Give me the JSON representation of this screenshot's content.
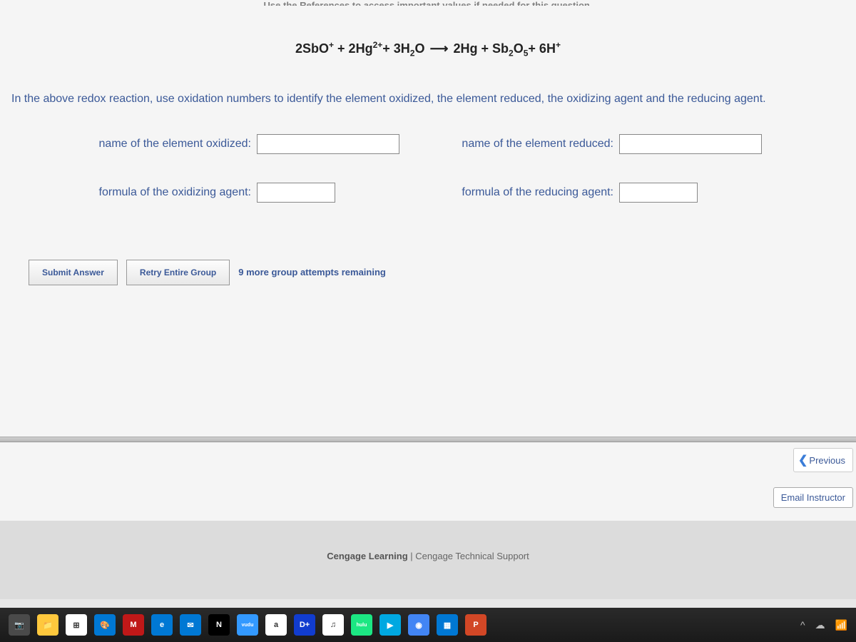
{
  "hint_text": "Use the References to access important values if needed for this question.",
  "equation_html": "2SbO<sup>+</sup> + 2Hg<sup>2+</sup>+ 3H<sub>2</sub>O<span class='arrow'>&#10230;</span>2Hg + Sb<sub>2</sub>O<sub>5</sub>+ 6H<sup>+</sup>",
  "instruction": "In the above redox reaction, use oxidation numbers to identify the element oxidized, the element reduced, the oxidizing agent and the reducing agent.",
  "fields": {
    "oxidized_label": "name of the element oxidized:",
    "reduced_label": "name of the element reduced:",
    "oxidizing_agent_label": "formula of the oxidizing agent:",
    "reducing_agent_label": "formula of the reducing agent:",
    "oxidized_value": "",
    "reduced_value": "",
    "oxidizing_agent_value": "",
    "reducing_agent_value": ""
  },
  "buttons": {
    "submit": "Submit Answer",
    "retry": "Retry Entire Group",
    "attempts": "9 more group attempts remaining",
    "previous": "Previous",
    "email": "Email Instructor"
  },
  "footer": {
    "cengage": "Cengage Learning",
    "support": "Cengage Technical Support",
    "separator": " | "
  },
  "taskbar": {
    "icons": [
      {
        "name": "camera-icon",
        "bg": "#4a4a4a",
        "label": "📷"
      },
      {
        "name": "file-explorer-icon",
        "bg": "#ffc83d",
        "label": "📁"
      },
      {
        "name": "microsoft-store-icon",
        "bg": "#ffffff",
        "label": "⊞"
      },
      {
        "name": "paint-icon",
        "bg": "#0078d4",
        "label": "🎨"
      },
      {
        "name": "mcafee-icon",
        "bg": "#c01818",
        "label": "M"
      },
      {
        "name": "edge-icon",
        "bg": "#0078d4",
        "label": "e"
      },
      {
        "name": "mail-icon",
        "bg": "#0078d4",
        "label": "✉"
      },
      {
        "name": "netflix-icon",
        "bg": "#000000",
        "label": "N"
      },
      {
        "name": "vudu-icon",
        "bg": "#3399ff",
        "label": "vudu"
      },
      {
        "name": "amazon-icon",
        "bg": "#ffffff",
        "label": "a"
      },
      {
        "name": "disney-icon",
        "bg": "#113ccf",
        "label": "D+"
      },
      {
        "name": "itunes-icon",
        "bg": "#ffffff",
        "label": "♫"
      },
      {
        "name": "hulu-icon",
        "bg": "#1ce783",
        "label": "hulu"
      },
      {
        "name": "prime-icon",
        "bg": "#00a8e1",
        "label": "▶"
      },
      {
        "name": "chrome-icon",
        "bg": "#4285f4",
        "label": "◉"
      },
      {
        "name": "calculator-icon",
        "bg": "#0078d4",
        "label": "▦"
      },
      {
        "name": "powerpoint-icon",
        "bg": "#d24726",
        "label": "P"
      }
    ],
    "right_icons": [
      "^",
      "☁",
      "📶"
    ]
  },
  "colors": {
    "background": "#f5f5f5",
    "text_primary": "#3b5998",
    "text_dark": "#222"
  }
}
